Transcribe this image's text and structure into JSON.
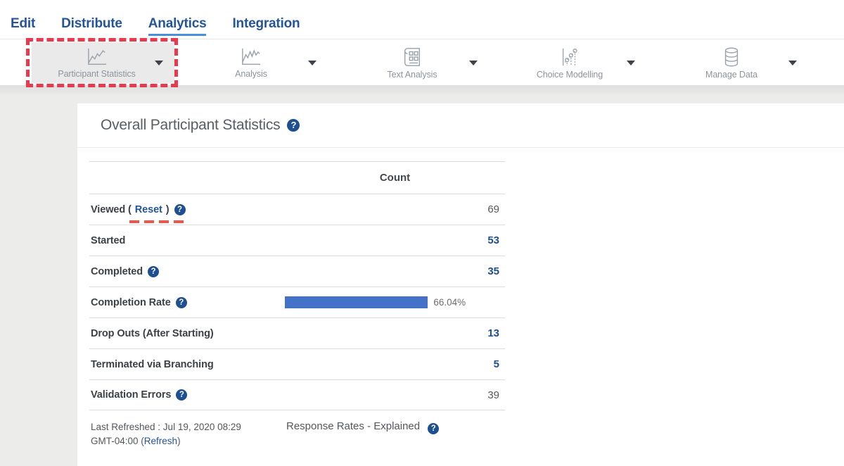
{
  "nav": {
    "items": [
      {
        "label": "Edit"
      },
      {
        "label": "Distribute"
      },
      {
        "label": "Analytics",
        "active": true
      },
      {
        "label": "Integration"
      }
    ]
  },
  "toolbar": {
    "items": [
      {
        "label": "Participant Statistics",
        "icon": "line-chart-icon",
        "selected": true,
        "highlighted": true
      },
      {
        "label": "Analysis",
        "icon": "line-chart-icon"
      },
      {
        "label": "Text Analysis",
        "icon": "document-grid-icon"
      },
      {
        "label": "Choice Modelling",
        "icon": "scatter-line-icon"
      },
      {
        "label": "Manage Data",
        "icon": "database-icon"
      }
    ],
    "dropdown_icon": "chevron-down-icon"
  },
  "main": {
    "title": "Overall Participant Statistics",
    "table": {
      "count_header": "Count",
      "rows": [
        {
          "label_prefix": "Viewed (",
          "reset_label": "Reset",
          "label_suffix": ")",
          "value": "69",
          "value_style": "gray",
          "has_help": true
        },
        {
          "label": "Started",
          "value": "53",
          "value_style": "blue"
        },
        {
          "label": "Completed",
          "value": "35",
          "value_style": "blue",
          "has_help": true
        },
        {
          "label": "Completion Rate",
          "type": "bar",
          "percent": 66.04,
          "percent_label": "66.04%",
          "has_help": true
        },
        {
          "label": "Drop Outs (After Starting)",
          "value": "13",
          "value_style": "blue"
        },
        {
          "label": "Terminated via Branching",
          "value": "5",
          "value_style": "blue"
        },
        {
          "label": "Validation Errors",
          "value": "39",
          "value_style": "gray",
          "has_help": true
        }
      ]
    },
    "footer": {
      "last_refreshed_line1": "Last Refreshed : Jul 19, 2020 08:29",
      "last_refreshed_line2_prefix": "GMT-04:00 (",
      "refresh_label": "Refresh",
      "last_refreshed_line2_suffix": ")",
      "response_rates_label": "Response Rates - Explained"
    }
  },
  "icons": {
    "help": "question-mark-circle-icon"
  },
  "colors": {
    "nav_blue": "#24549c",
    "nav_underline_blue": "#4a90d9",
    "value_blue": "#1e4e90",
    "help_blue": "#1d4f91",
    "bar_blue": "#4472c8",
    "highlight_red": "#e8394e",
    "reset_underline_red": "#f2544a",
    "page_gray": "#ececeb",
    "selected_button_gray": "#eaeaea"
  }
}
